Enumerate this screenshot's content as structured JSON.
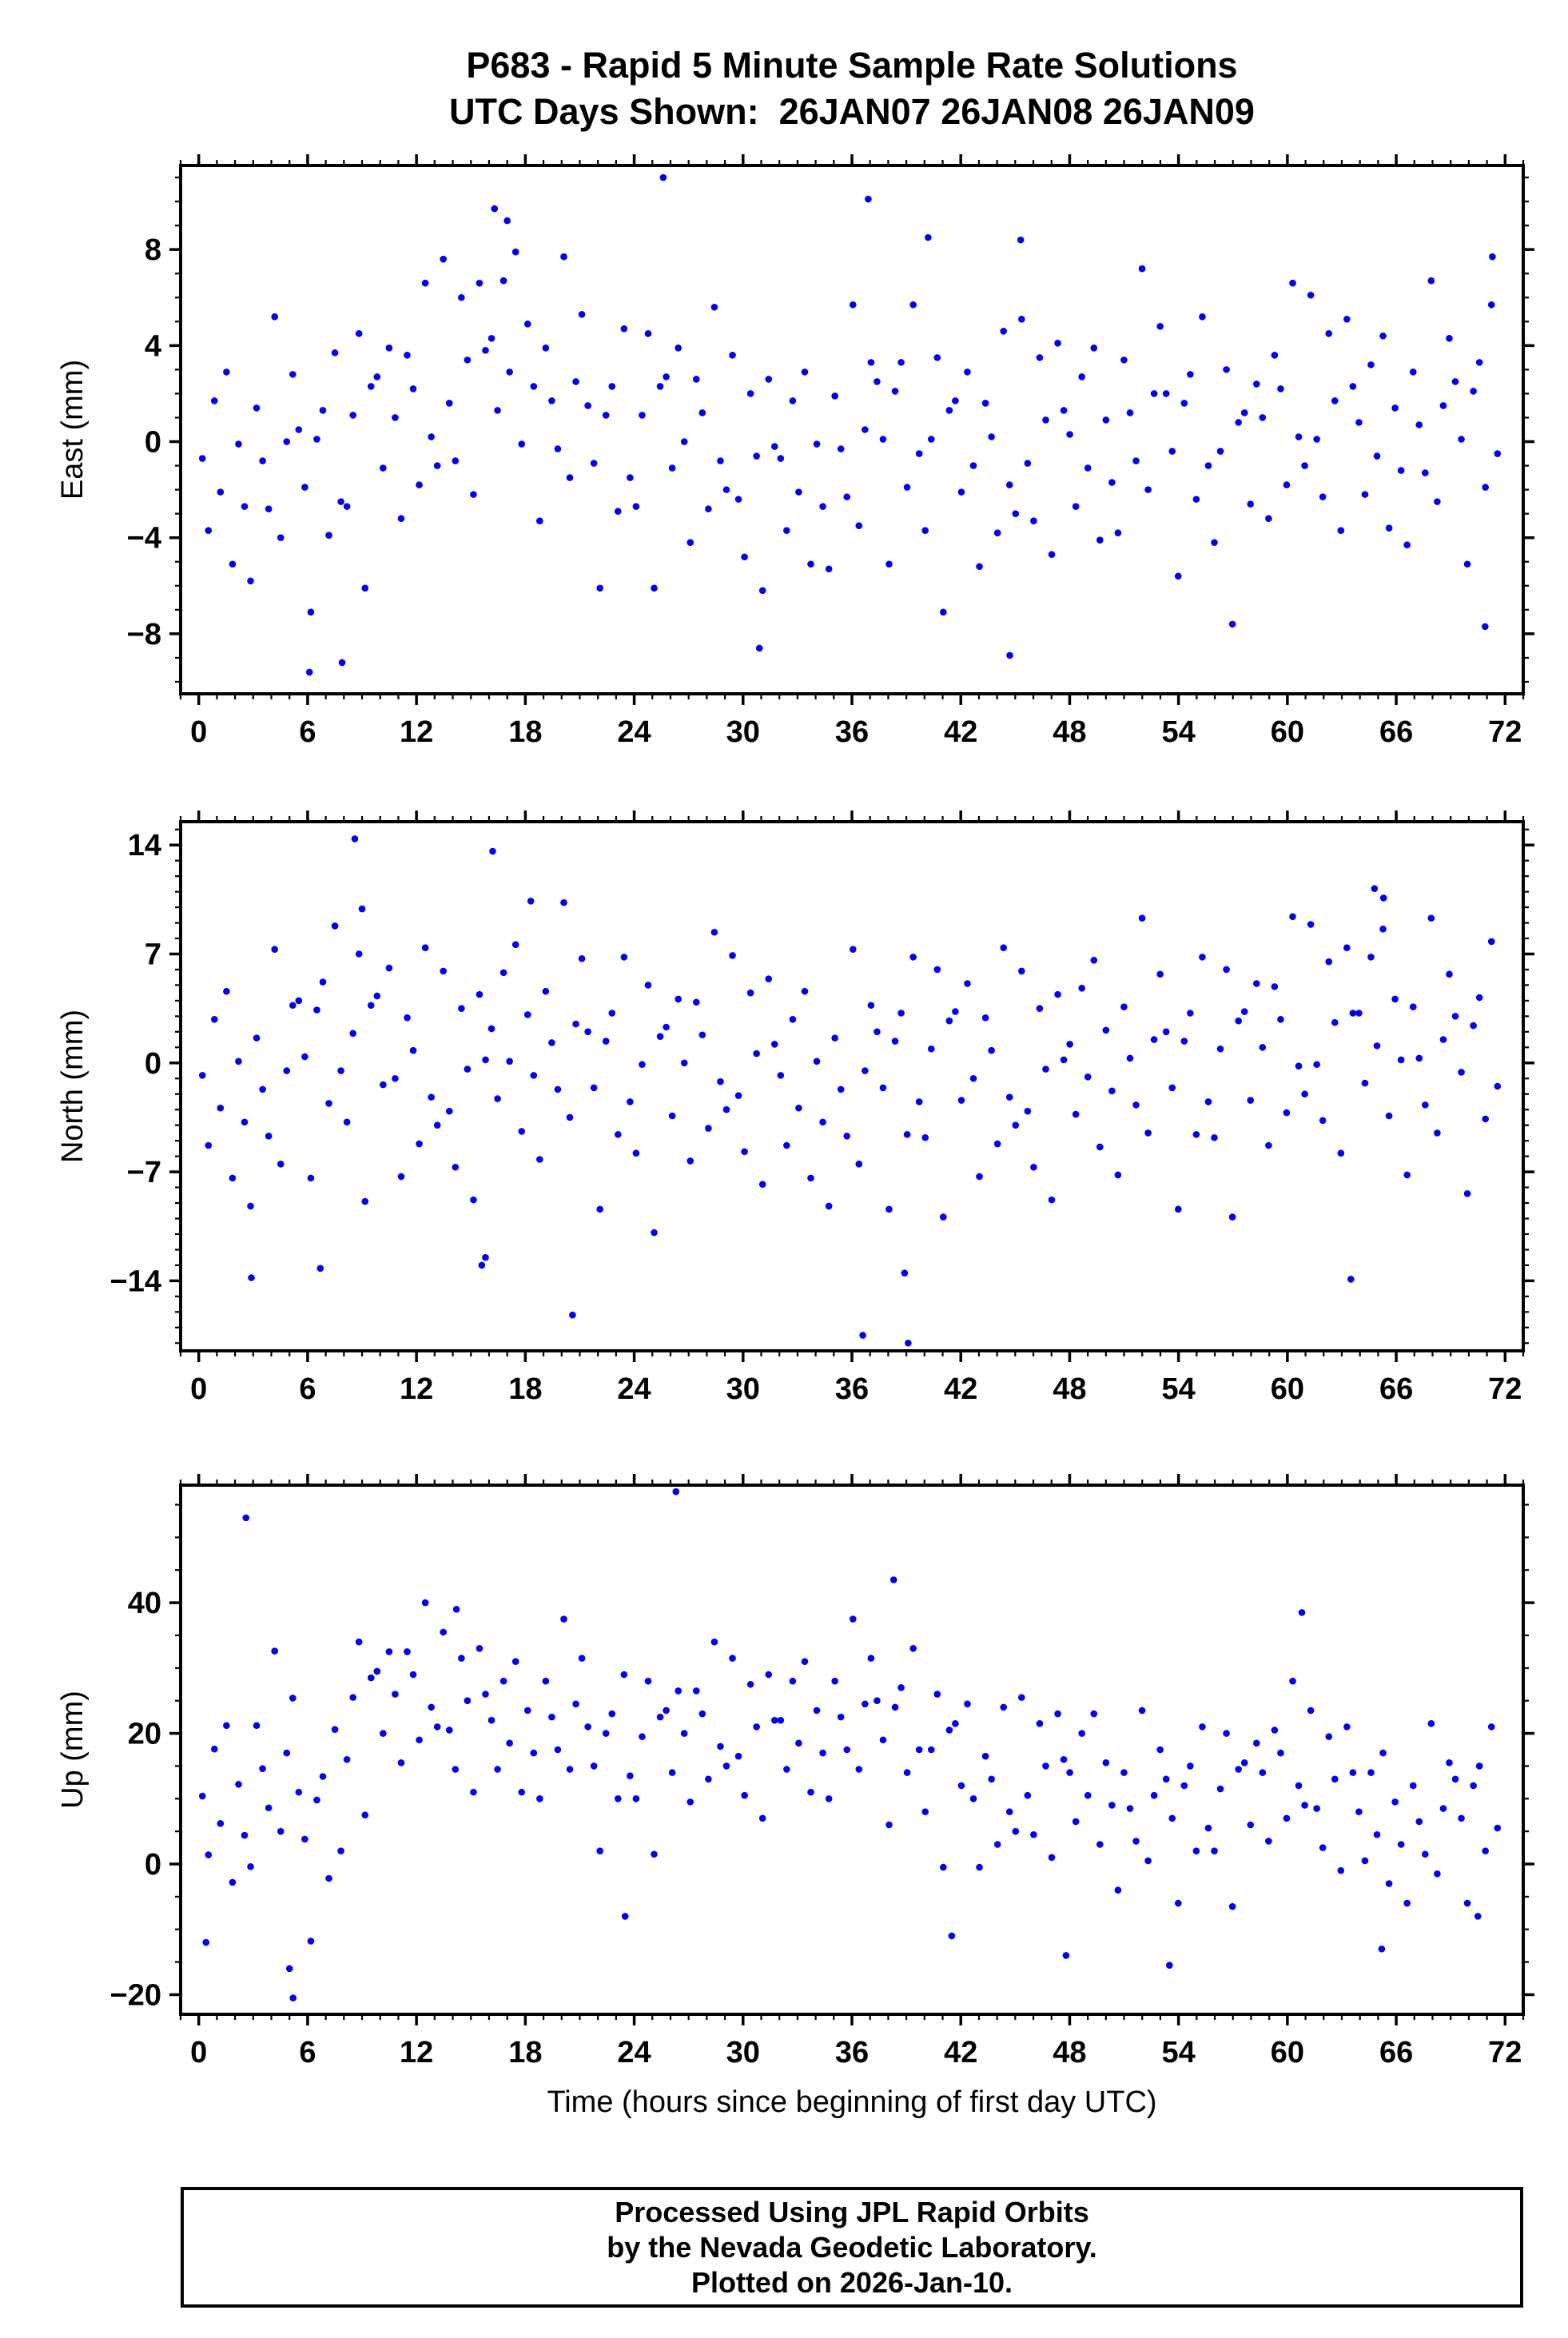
{
  "page": {
    "title_line1": "P683 - Rapid 5 Minute Sample Rate Solutions",
    "title_line2": "UTC Days Shown:  26JAN07 26JAN08 26JAN09"
  },
  "footer": {
    "lines": [
      "Processed Using JPL Rapid Orbits",
      "by the Nevada Geodetic Laboratory.",
      "Plotted on 2026-Jan-10."
    ]
  },
  "style": {
    "point_color": "#0000EE",
    "axis_color": "#000000",
    "background": "#FFFFFF"
  },
  "chart_data": [
    {
      "type": "scatter",
      "name": "east",
      "ylabel": "East (mm)",
      "xlabel": "",
      "xlim": [
        -1,
        73
      ],
      "ylim": [
        -10.5,
        11.5
      ],
      "xticks": [
        0,
        6,
        12,
        18,
        24,
        30,
        36,
        42,
        48,
        54,
        60,
        66,
        72
      ],
      "yticks": [
        -8,
        -4,
        0,
        4,
        8
      ],
      "x_minor": 1,
      "y_minor": 1,
      "x_start": 0.2,
      "x_step": 0.332,
      "y": [
        -0.7,
        -3.7,
        1.7,
        -2.1,
        2.9,
        -5.1,
        -0.1,
        -2.7,
        -5.8,
        1.4,
        -0.8,
        -2.8,
        5.2,
        -4.0,
        0.0,
        2.8,
        0.5,
        -1.9,
        -7.1,
        0.1,
        1.3,
        -3.9,
        3.7,
        -2.5,
        -2.7,
        1.1,
        4.5,
        -6.1,
        2.3,
        2.7,
        -1.1,
        3.9,
        1.0,
        -3.2,
        3.6,
        2.2,
        -1.8,
        6.6,
        0.2,
        -1.0,
        7.6,
        1.6,
        -0.8,
        6.0,
        3.4,
        -2.2,
        6.6,
        3.8,
        4.3,
        1.3,
        6.7,
        2.9,
        7.9,
        -0.1,
        4.9,
        2.3,
        -3.3,
        3.9,
        1.7,
        -0.3,
        7.7,
        -1.5,
        2.5,
        5.3,
        1.5,
        -0.9,
        -6.1,
        1.1,
        2.3,
        -2.9,
        4.7,
        -1.5,
        -2.7,
        1.1,
        4.5,
        -6.1,
        2.3,
        2.7,
        -1.1,
        3.9,
        0.0,
        -4.2,
        2.6,
        1.2,
        -2.8,
        5.6,
        -0.8,
        -2.0,
        3.6,
        -2.4,
        -4.8,
        2.0,
        -0.6,
        -6.2,
        2.6,
        -0.2,
        -0.7,
        -3.7,
        1.7,
        -2.1,
        2.9,
        -5.1,
        -0.1,
        -2.7,
        -5.3,
        1.9,
        -0.3,
        -2.3,
        5.7,
        -3.5,
        0.5,
        3.3,
        2.5,
        0.1,
        -5.1,
        2.1,
        3.3,
        -1.9,
        5.7,
        -0.5,
        -3.7,
        0.1,
        3.5,
        -7.1,
        1.3,
        1.7,
        -2.1,
        2.9,
        -1.0,
        -5.2,
        1.6,
        0.2,
        -3.8,
        4.6,
        -1.8,
        -3.0,
        5.1,
        -0.9,
        -3.3,
        3.5,
        0.9,
        -4.7,
        4.1,
        1.3,
        0.3,
        -2.7,
        2.7,
        -1.1,
        3.9,
        -4.1,
        0.9,
        -1.7,
        -3.8,
        3.4,
        1.2,
        -0.8,
        7.2,
        -2.0,
        2.0,
        4.8,
        2.0,
        -0.4,
        -5.6,
        1.6,
        2.8,
        -2.4,
        5.2,
        -1.0,
        -4.2,
        -0.4,
        3.0,
        -7.6,
        0.8,
        1.2,
        -2.6,
        2.4,
        1.0,
        -3.2,
        3.6,
        2.2,
        -1.8,
        6.6,
        0.2,
        -1.0,
        6.1,
        0.1,
        -2.3,
        4.5,
        1.7,
        -3.7,
        5.1,
        2.3,
        0.8,
        -2.2,
        3.2,
        -0.6,
        4.4,
        -3.6,
        1.4,
        -1.2,
        -4.3,
        2.9,
        0.7,
        -1.3,
        6.7,
        -2.5,
        1.5,
        4.3,
        2.5,
        0.1,
        -5.1,
        2.1,
        3.3,
        -1.9,
        5.7,
        -0.5
      ],
      "outliers": [
        [
          16.3,
          9.7
        ],
        [
          17.0,
          9.2
        ],
        [
          25.6,
          11.0
        ],
        [
          36.9,
          10.1
        ],
        [
          6.1,
          -9.6
        ],
        [
          7.9,
          -9.2
        ],
        [
          44.7,
          -8.9
        ],
        [
          30.9,
          -8.6
        ],
        [
          71.3,
          7.7
        ],
        [
          70.9,
          -7.7
        ],
        [
          40.2,
          8.5
        ],
        [
          45.3,
          8.4
        ]
      ]
    },
    {
      "type": "scatter",
      "name": "north",
      "ylabel": "North (mm)",
      "xlabel": "",
      "xlim": [
        -1,
        73
      ],
      "ylim": [
        -18.5,
        15.5
      ],
      "xticks": [
        0,
        6,
        12,
        18,
        24,
        30,
        36,
        42,
        48,
        54,
        60,
        66,
        72
      ],
      "yticks": [
        -14,
        -7,
        0,
        7,
        14
      ],
      "x_minor": 1,
      "y_minor": 1,
      "x_start": 0.2,
      "x_step": 0.332,
      "y": [
        -0.8,
        -5.3,
        2.8,
        -2.9,
        4.6,
        -7.4,
        0.1,
        -3.8,
        -9.2,
        1.6,
        -1.7,
        -4.7,
        7.3,
        -6.5,
        -0.5,
        3.7,
        4.0,
        0.4,
        -7.4,
        3.4,
        5.2,
        -2.6,
        8.8,
        -0.5,
        -3.8,
        1.9,
        7.0,
        -8.9,
        3.7,
        4.3,
        -1.4,
        6.1,
        -1.0,
        -7.3,
        2.9,
        0.8,
        -5.2,
        7.4,
        -2.2,
        -4.0,
        5.9,
        -3.1,
        -6.7,
        3.5,
        -0.4,
        -8.8,
        4.4,
        0.2,
        2.2,
        -2.3,
        5.8,
        0.1,
        7.6,
        -4.4,
        3.1,
        -0.8,
        -6.2,
        4.6,
        1.3,
        -1.7,
        10.3,
        -3.5,
        2.5,
        6.7,
        2.0,
        -1.6,
        -9.4,
        1.4,
        3.2,
        -4.6,
        6.8,
        -2.5,
        -5.8,
        -0.1,
        5.0,
        -10.9,
        1.7,
        2.3,
        -3.4,
        4.1,
        0.0,
        -6.3,
        3.9,
        1.8,
        -4.2,
        8.4,
        -1.2,
        -3.0,
        6.9,
        -2.1,
        -5.7,
        4.5,
        0.6,
        -7.8,
        5.4,
        1.2,
        -0.8,
        -5.3,
        2.8,
        -2.9,
        4.6,
        -7.4,
        0.1,
        -3.8,
        -9.2,
        1.6,
        -1.7,
        -4.7,
        7.3,
        -6.5,
        -0.5,
        3.7,
        2.0,
        -1.6,
        -9.4,
        1.4,
        3.2,
        -4.6,
        6.8,
        -2.5,
        -4.8,
        0.9,
        6.0,
        -9.9,
        2.7,
        3.3,
        -2.4,
        5.1,
        -1.0,
        -7.3,
        2.9,
        0.8,
        -5.2,
        7.4,
        -2.2,
        -4.0,
        5.9,
        -3.1,
        -6.7,
        3.5,
        -0.4,
        -8.8,
        4.4,
        0.2,
        1.2,
        -3.3,
        4.8,
        -0.9,
        6.6,
        -5.4,
        2.1,
        -1.8,
        -7.2,
        3.6,
        0.3,
        -2.7,
        9.3,
        -4.5,
        1.5,
        5.7,
        2.0,
        -1.6,
        -9.4,
        1.4,
        3.2,
        -4.6,
        6.8,
        -2.5,
        -4.8,
        0.9,
        6.0,
        -9.9,
        2.7,
        3.3,
        -2.4,
        5.1,
        1.0,
        -5.3,
        4.9,
        2.8,
        -3.2,
        9.4,
        -0.2,
        -2.0,
        8.9,
        -0.1,
        -3.7,
        6.5,
        2.6,
        -5.8,
        7.4,
        3.2,
        3.2,
        -1.3,
        6.8,
        1.1,
        8.6,
        -3.4,
        4.1,
        0.2,
        -7.2,
        3.6,
        0.3,
        -2.7,
        9.3,
        -4.5,
        1.5,
        5.7,
        3.0,
        -0.6,
        -8.4,
        2.4,
        4.2,
        -3.6,
        7.8,
        -1.5
      ],
      "outliers": [
        [
          8.6,
          14.4
        ],
        [
          16.2,
          13.6
        ],
        [
          18.3,
          10.4
        ],
        [
          9.0,
          9.9
        ],
        [
          2.9,
          -13.8
        ],
        [
          6.7,
          -13.2
        ],
        [
          15.6,
          -13.0
        ],
        [
          15.8,
          -12.5
        ],
        [
          20.6,
          -16.2
        ],
        [
          36.6,
          -17.5
        ],
        [
          38.9,
          -13.5
        ],
        [
          39.1,
          -18.0
        ],
        [
          63.5,
          -13.9
        ],
        [
          64.8,
          11.2
        ],
        [
          65.3,
          10.6
        ]
      ]
    },
    {
      "type": "scatter",
      "name": "up",
      "ylabel": "Up (mm)",
      "xlabel": "Time (hours since beginning of first day UTC)",
      "xlim": [
        -1,
        73
      ],
      "ylim": [
        -23,
        58
      ],
      "xticks": [
        0,
        6,
        12,
        18,
        24,
        30,
        36,
        42,
        48,
        54,
        60,
        66,
        72
      ],
      "yticks": [
        -20,
        0,
        20,
        40
      ],
      "x_minor": 1,
      "y_minor": 5,
      "x_start": 0.2,
      "x_step": 0.332,
      "y": [
        10.4,
        1.4,
        17.6,
        6.2,
        21.2,
        -2.8,
        12.2,
        4.4,
        -0.4,
        21.2,
        14.6,
        8.6,
        32.6,
        5.0,
        17.0,
        25.4,
        11.0,
        3.8,
        -11.8,
        9.8,
        13.4,
        -2.2,
        20.6,
        2.0,
        16.0,
        25.5,
        34.0,
        7.5,
        28.5,
        29.5,
        20.0,
        32.5,
        26.0,
        15.5,
        32.5,
        29.0,
        19.0,
        40.0,
        24.0,
        21.0,
        35.5,
        20.5,
        14.5,
        31.5,
        25.0,
        11.0,
        33.0,
        26.0,
        22.0,
        14.5,
        28.0,
        18.5,
        31.0,
        11.0,
        23.5,
        17.0,
        10.0,
        28.0,
        22.5,
        17.5,
        37.5,
        14.5,
        24.5,
        31.5,
        21.0,
        15.0,
        2.0,
        20.0,
        23.0,
        10.0,
        29.0,
        13.5,
        10.0,
        19.5,
        28.0,
        1.5,
        22.5,
        23.5,
        14.0,
        26.5,
        20.0,
        9.5,
        26.5,
        23.0,
        13.0,
        34.0,
        18.0,
        15.0,
        31.5,
        16.5,
        10.5,
        27.5,
        21.0,
        7.0,
        29.0,
        22.0,
        22.0,
        14.5,
        28.0,
        18.5,
        31.0,
        11.0,
        23.5,
        17.0,
        10.0,
        28.0,
        22.5,
        17.5,
        37.5,
        14.5,
        24.5,
        31.5,
        25.0,
        19.0,
        6.0,
        24.0,
        27.0,
        14.0,
        33.0,
        17.5,
        8.0,
        17.5,
        26.0,
        -0.5,
        20.5,
        21.5,
        12.0,
        24.5,
        10.0,
        -0.5,
        16.5,
        13.0,
        3.0,
        24.0,
        8.0,
        5.0,
        25.5,
        10.5,
        4.5,
        21.5,
        15.0,
        1.0,
        23.0,
        16.0,
        14.0,
        6.5,
        20.0,
        10.5,
        23.0,
        3.0,
        15.5,
        9.0,
        -4.0,
        14.0,
        8.5,
        3.5,
        23.5,
        0.5,
        10.5,
        17.5,
        13.0,
        7.0,
        -6.0,
        12.0,
        15.0,
        2.0,
        21.0,
        5.5,
        2.0,
        11.5,
        20.0,
        -6.5,
        14.5,
        15.5,
        6.0,
        18.5,
        14.0,
        3.5,
        20.5,
        17.0,
        7.0,
        28.0,
        12.0,
        9.0,
        23.5,
        8.5,
        2.5,
        19.5,
        13.0,
        -1.0,
        21.0,
        14.0,
        8.0,
        0.5,
        14.0,
        4.5,
        17.0,
        -3.0,
        9.5,
        3.0,
        -6.0,
        12.0,
        6.5,
        1.5,
        21.5,
        -1.5,
        8.5,
        15.5,
        13.0,
        7.0,
        -6.0,
        12.0,
        15.0,
        2.0,
        21.0,
        5.5
      ],
      "outliers": [
        [
          2.6,
          53.0
        ],
        [
          26.3,
          57.0
        ],
        [
          38.3,
          43.5
        ],
        [
          60.8,
          38.5
        ],
        [
          14.2,
          39.0
        ],
        [
          0.4,
          -12.0
        ],
        [
          5.2,
          -20.5
        ],
        [
          5.0,
          -16.0
        ],
        [
          23.5,
          -8.0
        ],
        [
          41.5,
          -11.0
        ],
        [
          47.8,
          -14.0
        ],
        [
          53.5,
          -15.5
        ],
        [
          65.2,
          -13.0
        ],
        [
          70.5,
          -8.0
        ]
      ]
    }
  ]
}
